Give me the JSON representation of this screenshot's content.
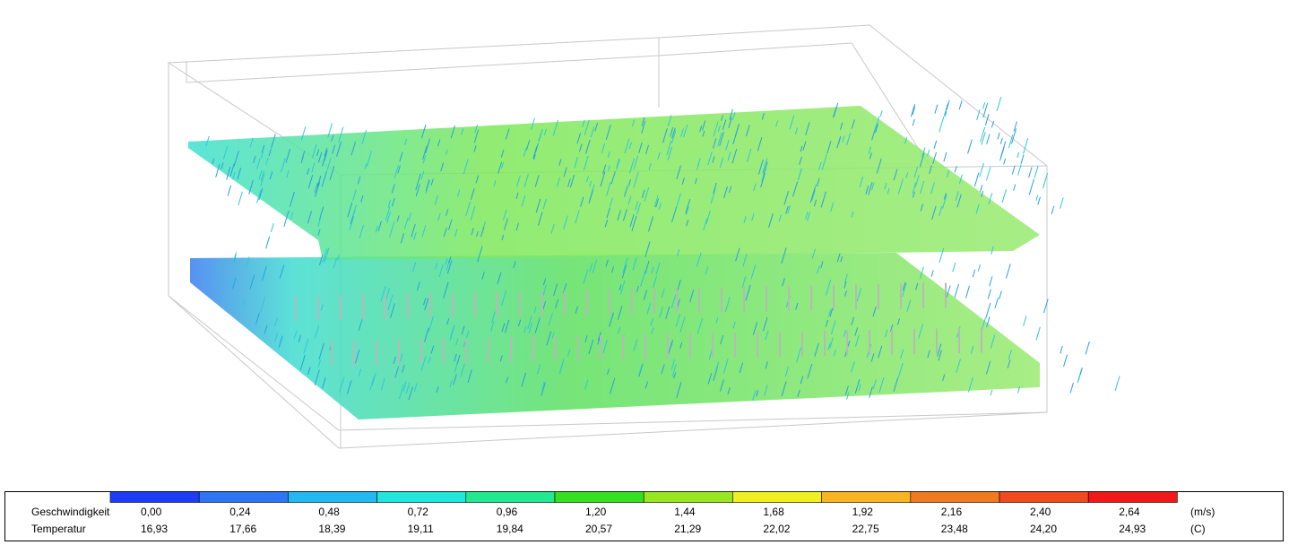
{
  "legend": {
    "colors": [
      "#1e3cf5",
      "#2f74f2",
      "#22b8f0",
      "#22e6dc",
      "#22e890",
      "#36e020",
      "#98e620",
      "#f0f020",
      "#f8b422",
      "#f07a20",
      "#f04a20",
      "#f01818"
    ],
    "rows": [
      {
        "label": "Geschwindigkeit",
        "values": [
          "0,00",
          "0,24",
          "0,48",
          "0,72",
          "0,96",
          "1,20",
          "1,44",
          "1,68",
          "1,92",
          "2,16",
          "2,40",
          "2,64"
        ],
        "unit": "(m/s)"
      },
      {
        "label": "Temperatur",
        "values": [
          "16,93",
          "17,66",
          "18,39",
          "19,11",
          "19,84",
          "20,57",
          "21,29",
          "22,02",
          "22,75",
          "23,48",
          "24,20",
          "24,93"
        ],
        "unit": "(C)"
      }
    ]
  }
}
